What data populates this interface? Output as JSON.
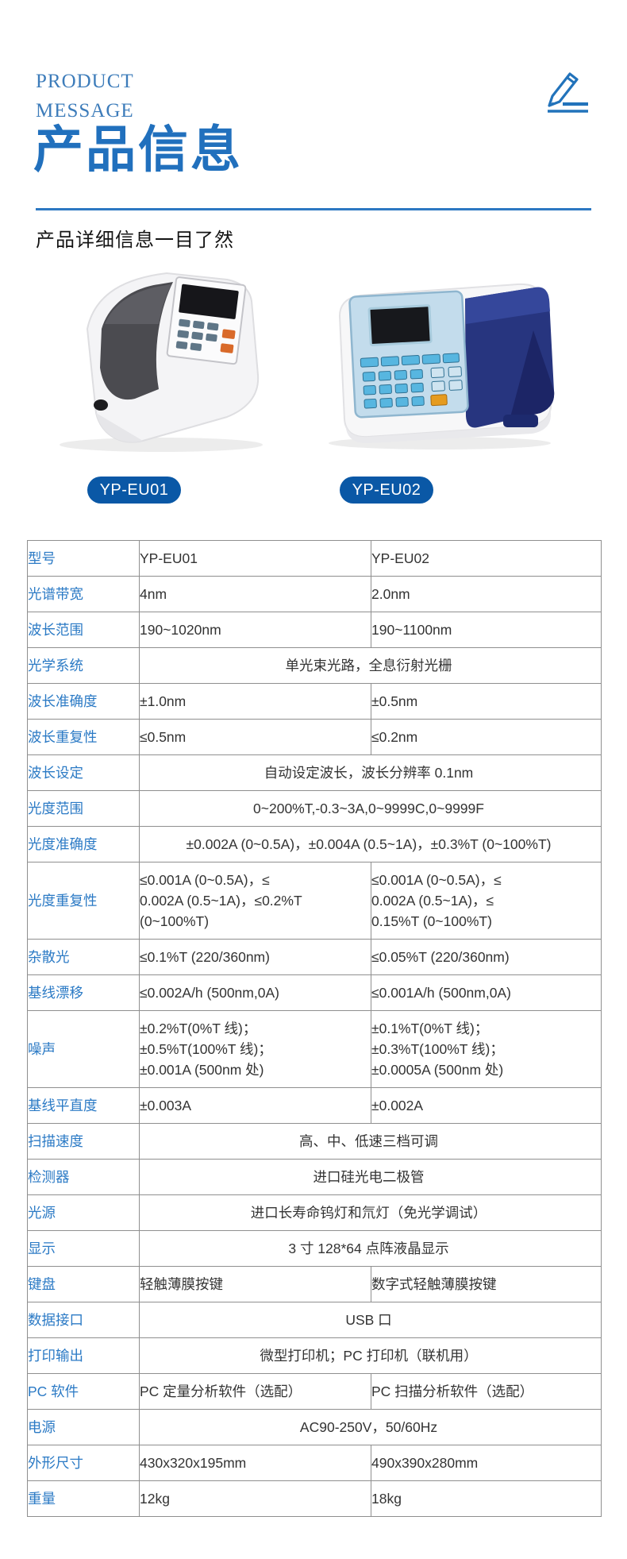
{
  "header": {
    "eyebrow_line1": "PRODUCT",
    "eyebrow_line2": "MESSAGE",
    "title": "产品信息",
    "subtitle": "产品详细信息一目了然"
  },
  "products": [
    {
      "name": "spectrophotometer-yp-eu01",
      "badge": "YP-EU01"
    },
    {
      "name": "spectrophotometer-yp-eu02",
      "badge": "YP-EU02"
    }
  ],
  "icons": {
    "pencil": "pencil-icon"
  },
  "colors": {
    "accent_blue": "#2170bd",
    "eyebrow_blue": "#3d7cba",
    "divider_blue": "#2d78c2",
    "badge_blue": "#0a58a6",
    "label_blue": "#2b7ac5",
    "value_gray": "#333333",
    "border_gray": "#8f8f8f",
    "lid_navy": "#27357f",
    "key_blue": "#57b6e0",
    "key_orange": "#e59b1f",
    "button_orange": "#d96a2a"
  },
  "table": {
    "rows": [
      {
        "label": "型号",
        "col1": "YP-EU01",
        "col2": "YP-EU02"
      },
      {
        "label": "光谱带宽",
        "col1": "4nm",
        "col2": "2.0nm"
      },
      {
        "label": "波长范围",
        "col1": "190~1020nm",
        "col2": "190~1100nm"
      },
      {
        "label": "光学系统",
        "span": "单光束光路，全息衍射光栅"
      },
      {
        "label": "波长准确度",
        "col1": "±1.0nm",
        "col2": "±0.5nm"
      },
      {
        "label": "波长重复性",
        "col1": "≤0.5nm",
        "col2": "≤0.2nm"
      },
      {
        "label": "波长设定",
        "span": "自动设定波长，波长分辨率 0.1nm"
      },
      {
        "label": "光度范围",
        "span": "0~200%T,-0.3~3A,0~9999C,0~9999F"
      },
      {
        "label": "光度准确度",
        "span": "±0.002A (0~0.5A)，±0.004A (0.5~1A)，±0.3%T (0~100%T)"
      },
      {
        "label": "光度重复性",
        "col1": "≤0.001A (0~0.5A)，≤\n0.002A (0.5~1A)，≤0.2%T\n(0~100%T)",
        "col2": "≤0.001A (0~0.5A)，≤\n0.002A (0.5~1A)，≤\n0.15%T (0~100%T)"
      },
      {
        "label": "杂散光",
        "col1": "≤0.1%T (220/360nm)",
        "col2": "≤0.05%T (220/360nm)"
      },
      {
        "label": "基线漂移",
        "col1": "≤0.002A/h (500nm,0A)",
        "col2": "≤0.001A/h (500nm,0A)"
      },
      {
        "label": "噪声",
        "col1": "±0.2%T(0%T 线)；\n±0.5%T(100%T 线)；\n±0.001A (500nm 处)",
        "col2": "±0.1%T(0%T 线)；\n±0.3%T(100%T 线)；\n±0.0005A (500nm 处)"
      },
      {
        "label": "基线平直度",
        "col1": "±0.003A",
        "col2": "±0.002A"
      },
      {
        "label": "扫描速度",
        "span": "高、中、低速三档可调"
      },
      {
        "label": "检测器",
        "span": "进口硅光电二极管"
      },
      {
        "label": "光源",
        "span": "进口长寿命钨灯和氘灯（免光学调试）"
      },
      {
        "label": "显示",
        "span": "3 寸 128*64 点阵液晶显示"
      },
      {
        "label": "键盘",
        "col1": "轻触薄膜按键",
        "col2": "数字式轻触薄膜按键"
      },
      {
        "label": "数据接口",
        "span": "USB 口"
      },
      {
        "label": "打印输出",
        "span": "微型打印机；PC 打印机（联机用）"
      },
      {
        "label": "PC 软件",
        "col1": "PC 定量分析软件（选配）",
        "col2": "PC 扫描分析软件（选配）"
      },
      {
        "label": "电源",
        "span": "AC90-250V，50/60Hz"
      },
      {
        "label": "外形尺寸",
        "col1": "430x320x195mm",
        "col2": "490x390x280mm"
      },
      {
        "label": "重量",
        "col1": "12kg",
        "col2": "18kg"
      }
    ]
  }
}
